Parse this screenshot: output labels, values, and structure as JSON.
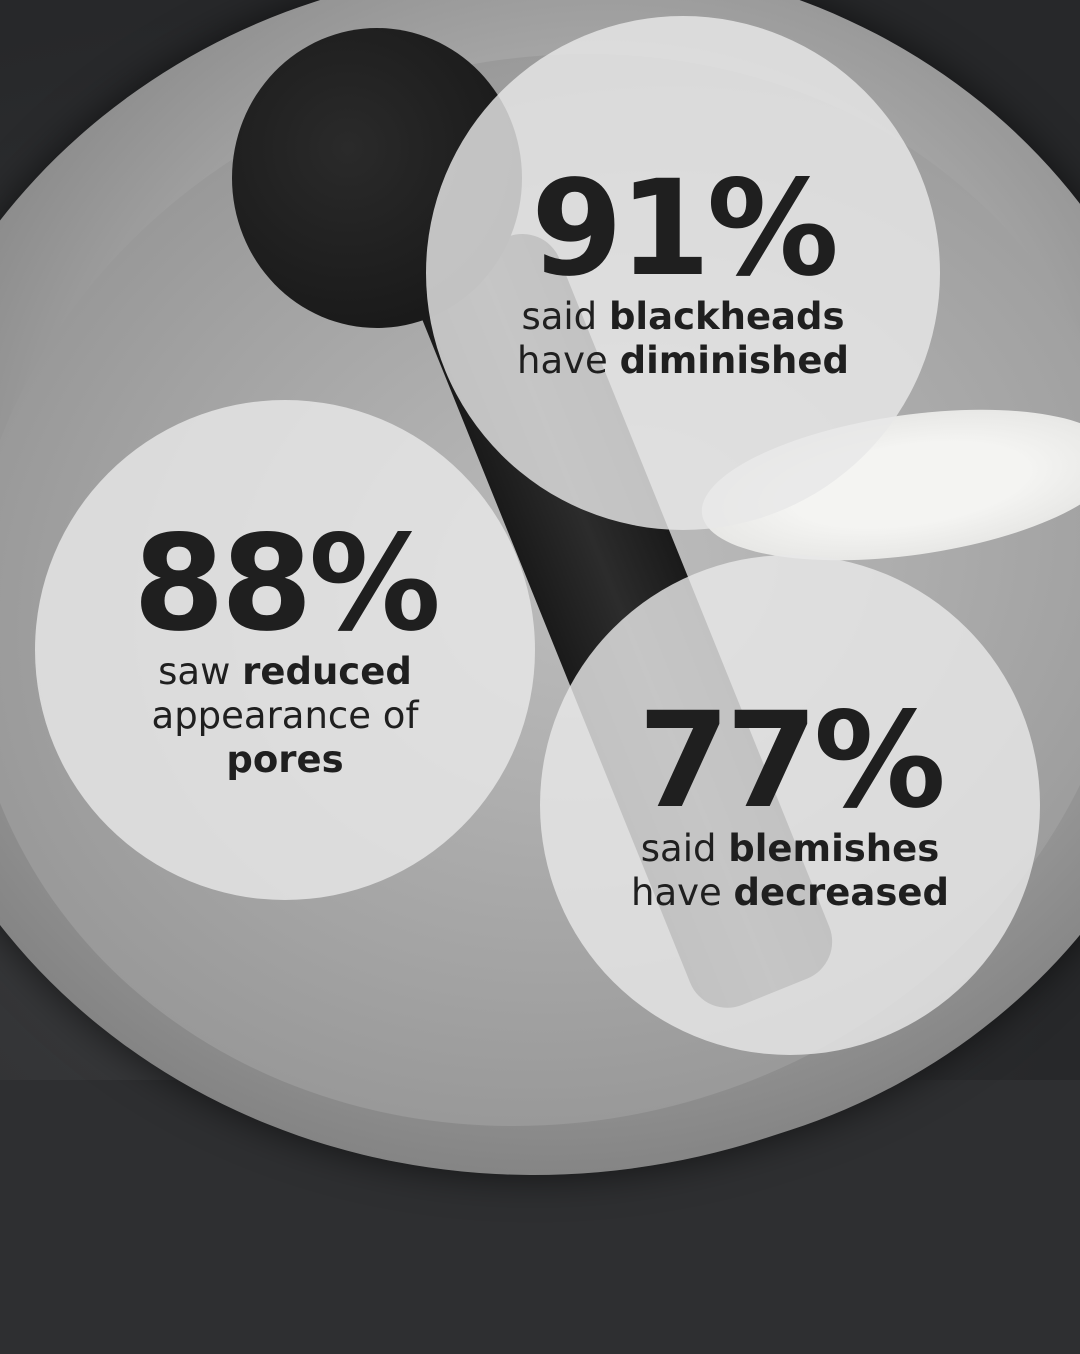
{
  "stats": [
    {
      "value": "91%",
      "line1_pre": "said ",
      "line1_bold": "blackheads",
      "line2_pre": "have ",
      "line2_bold": "diminished",
      "line3_pre": "",
      "line3_bold": ""
    },
    {
      "value": "88%",
      "line1_pre": "saw ",
      "line1_bold": "reduced",
      "line2_pre": "appearance of",
      "line2_bold": "",
      "line3_pre": "",
      "line3_bold": "pores"
    },
    {
      "value": "77%",
      "line1_pre": "said ",
      "line1_bold": "blemishes",
      "line2_pre": "have ",
      "line2_bold": "decreased",
      "line3_pre": "",
      "line3_bold": ""
    }
  ],
  "colors": {
    "text": "#1f1f1f",
    "circle": "#e8e8e8"
  }
}
